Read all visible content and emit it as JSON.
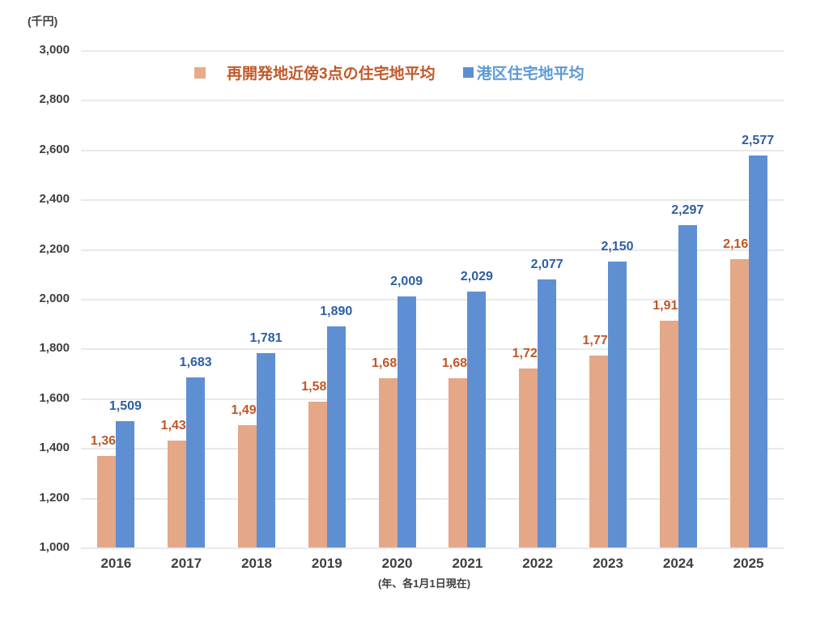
{
  "chart_data": {
    "type": "bar",
    "unit_label": "(千円)",
    "xlabel": "(年、各1月1日現在)",
    "categories": [
      "2016",
      "2017",
      "2018",
      "2019",
      "2020",
      "2021",
      "2022",
      "2023",
      "2024",
      "2025"
    ],
    "series": [
      {
        "name": "再開発地近傍3点の住宅地平均",
        "bar_color": "#e4a787",
        "marker_color": "#e6ab8b",
        "label_color": "#be5727",
        "legend_text_color": "#c05a2b",
        "values": [
          1367,
          1430,
          1493,
          1587,
          1680,
          1680,
          1720,
          1773,
          1913,
          2160
        ],
        "labels": [
          "1,367",
          "1,430",
          "1,493",
          "1,587",
          "1,680",
          "1,680",
          "1,720",
          "1,773",
          "1,913",
          "2,160"
        ]
      },
      {
        "name": "港区住宅地平均",
        "bar_color": "#5e8fd2",
        "marker_color": "#5e8fd2",
        "label_color": "#2e5fa3",
        "legend_text_color": "#5b9bd5",
        "values": [
          1509,
          1683,
          1781,
          1890,
          2009,
          2029,
          2077,
          2150,
          2297,
          2577
        ],
        "labels": [
          "1,509",
          "1,683",
          "1,781",
          "1,890",
          "2,009",
          "2,029",
          "2,077",
          "2,150",
          "2,297",
          "2,577"
        ]
      }
    ],
    "ylim": [
      1000,
      3000
    ],
    "ytick_step": 200,
    "ytick_labels": [
      "3,000",
      "2,800",
      "2,600",
      "2,400",
      "2,200",
      "2,000",
      "1,800",
      "1,600",
      "1,400",
      "1,200",
      "1,000"
    ],
    "grid": true,
    "gridline_color": "#e9e9ec",
    "legend_position": "top-center"
  }
}
